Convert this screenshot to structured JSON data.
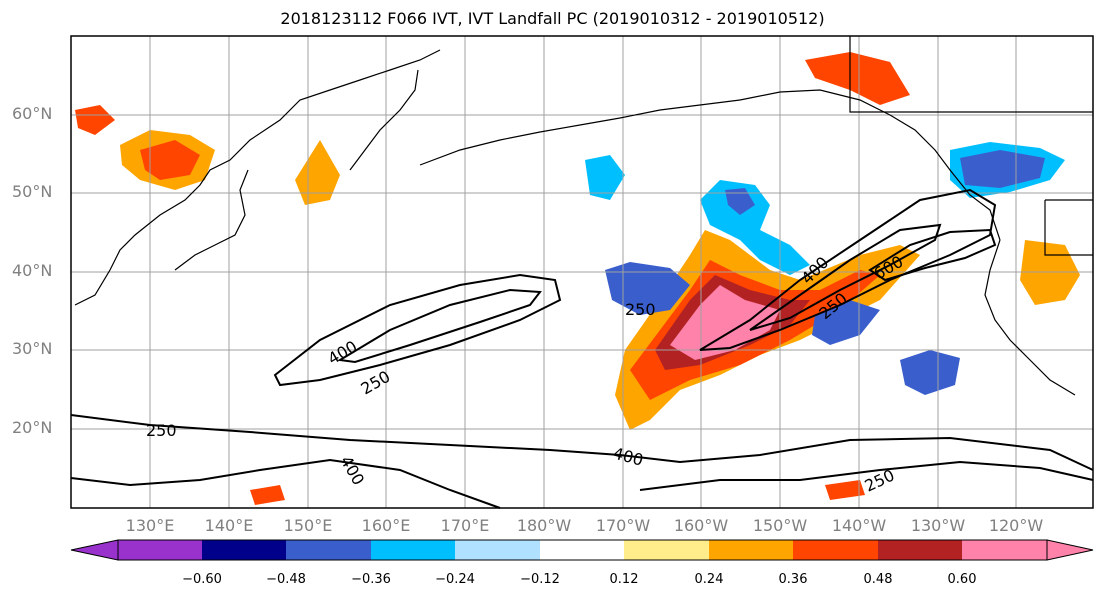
{
  "title": "2018123112 F066 IVT, IVT Landfall PC (2019010312 - 2019010512)",
  "lat_labels": [
    "60°N",
    "50°N",
    "40°N",
    "30°N",
    "20°N"
  ],
  "lon_labels": [
    "130°E",
    "140°E",
    "150°E",
    "160°E",
    "170°E",
    "180°W",
    "170°W",
    "160°W",
    "150°W",
    "140°W",
    "130°W",
    "120°W"
  ],
  "contour_labels": [
    "400",
    "250",
    "250",
    "250",
    "400",
    "250",
    "400",
    "600",
    "250",
    "400"
  ],
  "colorbar": {
    "ticks": [
      "−0.60",
      "−0.48",
      "−0.36",
      "−0.24",
      "−0.12",
      "0.12",
      "0.24",
      "0.36",
      "0.48",
      "0.60"
    ],
    "colors": [
      "#9932cc",
      "#00008b",
      "#3a5fcd",
      "#00bfff",
      "#b0e2ff",
      "#ffffff",
      "#ffec8b",
      "#ffa500",
      "#ff4500",
      "#b22222",
      "#ff82ab"
    ]
  },
  "colors": {
    "frame": "#000000",
    "grid": "#a0a0a0",
    "tick_label": "#808080",
    "contour": "#000000"
  }
}
